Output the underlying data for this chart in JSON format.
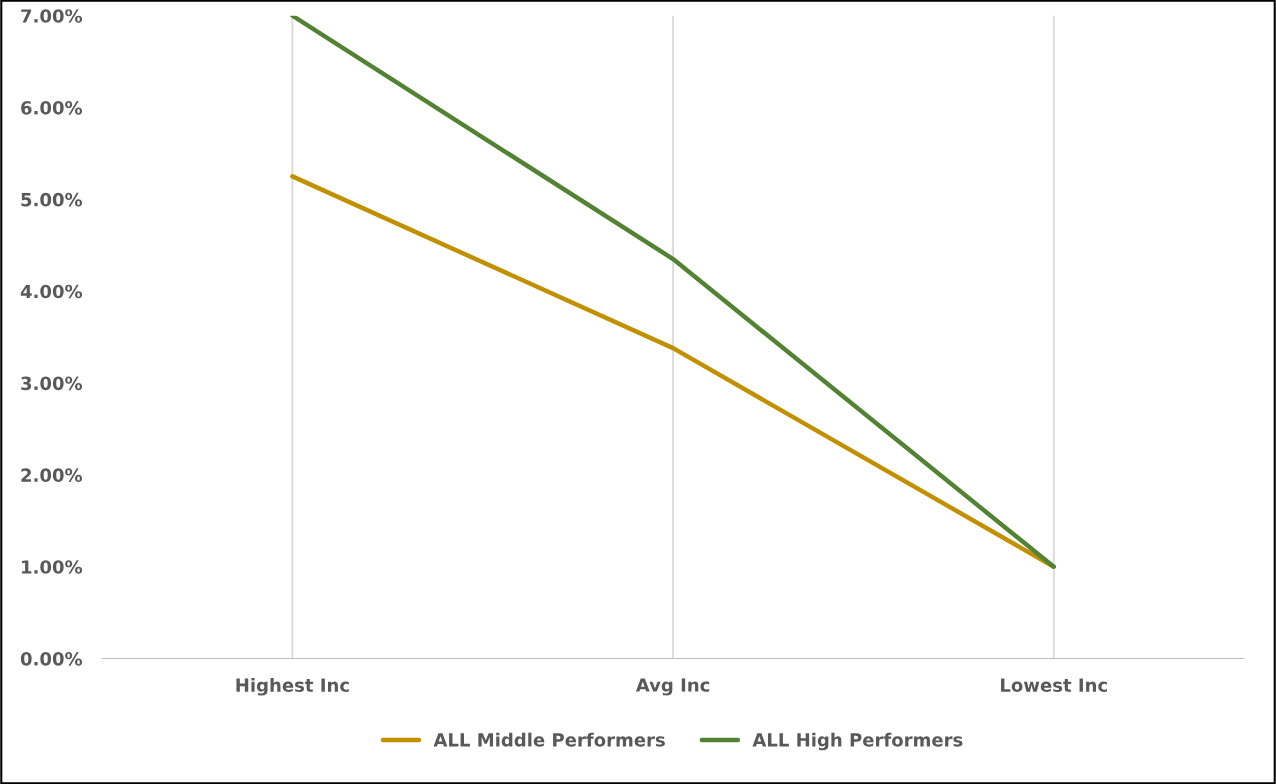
{
  "chart_data": {
    "type": "line",
    "categories": [
      "Highest Inc",
      "Avg Inc",
      "Lowest Inc"
    ],
    "series": [
      {
        "name": "ALL Middle Performers",
        "color": "#c09000",
        "values": [
          5.25,
          3.38,
          1.0
        ]
      },
      {
        "name": "ALL High Performers",
        "color": "#548235",
        "values": [
          7.0,
          4.35,
          1.0
        ]
      }
    ],
    "ylim": [
      0,
      7
    ],
    "yticks": [
      {
        "value": 0,
        "label": "0.00%"
      },
      {
        "value": 1,
        "label": "1.00%"
      },
      {
        "value": 2,
        "label": "2.00%"
      },
      {
        "value": 3,
        "label": "3.00%"
      },
      {
        "value": 4,
        "label": "4.00%"
      },
      {
        "value": 5,
        "label": "5.00%"
      },
      {
        "value": 6,
        "label": "6.00%"
      },
      {
        "value": 7,
        "label": "7.00%"
      }
    ],
    "grid": "x",
    "legend": "bottom",
    "marker": "none",
    "line_style": "solid"
  }
}
